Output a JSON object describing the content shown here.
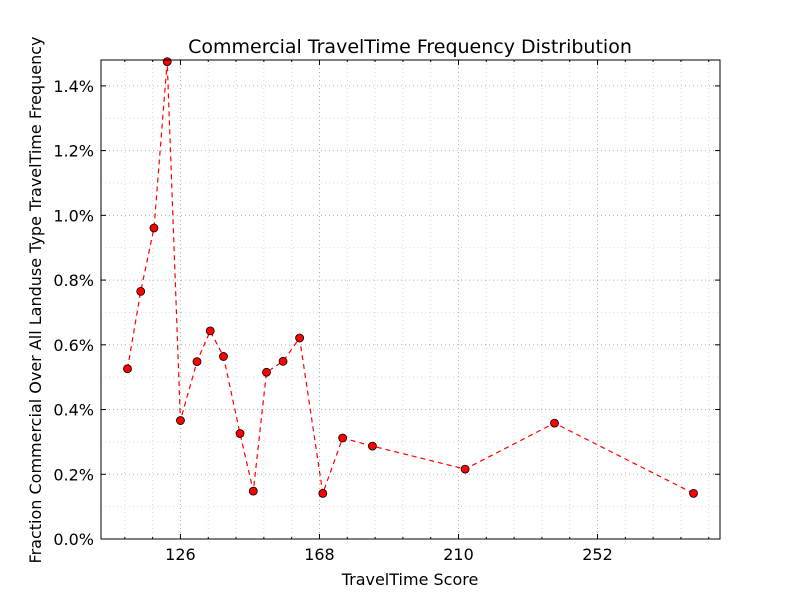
{
  "chart_data": {
    "type": "line",
    "title": "Commercial TravelTime Frequency Distribution",
    "xlabel": "TravelTime Score",
    "ylabel": "Fraction Commercial Over All Landuse Type TravelTime Frequency",
    "xlim": [
      102,
      289
    ],
    "ylim": [
      0,
      1.48
    ],
    "xticks": [
      126,
      168,
      210,
      252
    ],
    "xtick_labels": [
      "126",
      "168",
      "210",
      "252"
    ],
    "yticks": [
      0,
      0.2,
      0.4,
      0.6,
      0.8,
      1.0,
      1.2,
      1.4
    ],
    "ytick_labels": [
      "0.0%",
      "0.2%",
      "0.4%",
      "0.6%",
      "0.8%",
      "1.0%",
      "1.2%",
      "1.4%"
    ],
    "grid": true,
    "series": [
      {
        "color": "#ff0000",
        "line_style": "dashed",
        "marker": "circle",
        "x": [
          110,
          114,
          118,
          122,
          126,
          131,
          135,
          139,
          144,
          148,
          152,
          157,
          162,
          169,
          175,
          184,
          212,
          239,
          281
        ],
        "y": [
          0.526,
          0.765,
          0.961,
          1.475,
          0.366,
          0.548,
          0.643,
          0.564,
          0.326,
          0.148,
          0.515,
          0.549,
          0.621,
          0.141,
          0.312,
          0.287,
          0.216,
          0.358,
          0.141
        ]
      }
    ]
  }
}
